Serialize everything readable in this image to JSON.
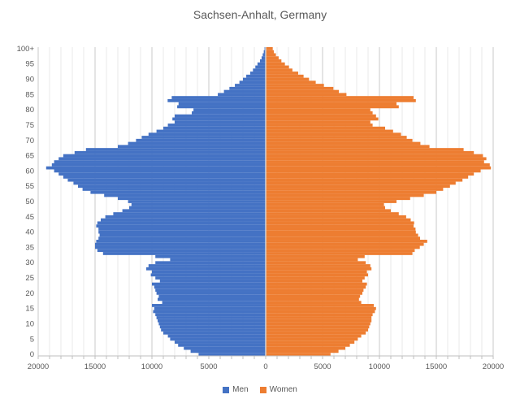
{
  "title": "Sachsen-Anhalt, Germany",
  "legend": {
    "men": "Men",
    "women": "Women"
  },
  "colors": {
    "men": "#4472C4",
    "women": "#ED7D31",
    "title_text": "#595959",
    "axis_text": "#595959",
    "grid_minor": "#E8E8E8",
    "grid_major": "#C9C9C9",
    "axis_line": "#BFBFBF",
    "center_divider": "#D9D9D9"
  },
  "chart_data": {
    "type": "bar",
    "subtype": "population-pyramid",
    "orientation": "horizontal-mirrored",
    "title": "Sachsen-Anhalt, Germany",
    "legend_position": "bottom",
    "grid": true,
    "x_axis": {
      "min": 0,
      "max": 20000,
      "major_tick_interval": 5000,
      "minor_gridline_interval": 1000,
      "tick_labels": [
        "20000",
        "15000",
        "10000",
        "5000",
        "0",
        "5000",
        "10000",
        "15000",
        "20000"
      ]
    },
    "y_axis": {
      "unit": "age (single years)",
      "label_interval": 5,
      "tick_labels": [
        "0",
        "5",
        "10",
        "15",
        "20",
        "25",
        "30",
        "35",
        "40",
        "45",
        "50",
        "55",
        "60",
        "65",
        "70",
        "75",
        "80",
        "85",
        "90",
        "95",
        "100+"
      ]
    },
    "ages": {
      "from": 0,
      "to": 100,
      "top_label": "100+"
    },
    "series": [
      {
        "name": "Men",
        "side": "left",
        "color": "#4472C4",
        "values": [
          5900,
          6600,
          7200,
          7700,
          8000,
          8400,
          8600,
          9000,
          9200,
          9300,
          9400,
          9500,
          9600,
          9700,
          9900,
          9800,
          10000,
          9100,
          9500,
          9400,
          9600,
          9700,
          9800,
          10000,
          9300,
          9700,
          10100,
          10000,
          10500,
          10300,
          9700,
          8400,
          9700,
          14300,
          14800,
          15000,
          15000,
          14900,
          14700,
          14600,
          14700,
          14700,
          14900,
          14800,
          14500,
          14100,
          13400,
          12600,
          12000,
          11800,
          12100,
          13000,
          14200,
          15400,
          16100,
          16500,
          16900,
          17400,
          17800,
          18200,
          18600,
          19300,
          18800,
          18600,
          18200,
          17800,
          16800,
          15800,
          13000,
          12100,
          11400,
          10900,
          10300,
          9600,
          9000,
          8600,
          8000,
          8200,
          8000,
          6500,
          6350,
          7780,
          7660,
          8620,
          8260,
          4210,
          3670,
          3190,
          2710,
          2310,
          2000,
          1710,
          1360,
          1120,
          910,
          720,
          500,
          360,
          260,
          170,
          100
        ]
      },
      {
        "name": "Women",
        "side": "right",
        "color": "#ED7D31",
        "values": [
          5700,
          6400,
          7000,
          7400,
          7800,
          8100,
          8400,
          8800,
          9000,
          9100,
          9200,
          9300,
          9300,
          9400,
          9600,
          9700,
          9500,
          8400,
          8200,
          8300,
          8500,
          8600,
          8800,
          8900,
          8500,
          8700,
          9000,
          8900,
          9300,
          9200,
          8800,
          8100,
          8700,
          12900,
          13100,
          13550,
          13900,
          14200,
          13570,
          13400,
          13200,
          13170,
          13000,
          13050,
          12750,
          12350,
          11700,
          11000,
          10500,
          10400,
          11500,
          12700,
          13900,
          15000,
          15600,
          16200,
          16700,
          17300,
          17800,
          18300,
          18900,
          19800,
          19700,
          19200,
          19400,
          19100,
          18300,
          17400,
          14400,
          13600,
          12900,
          12400,
          11900,
          11200,
          10500,
          9400,
          9200,
          9900,
          9700,
          9400,
          9200,
          11700,
          11500,
          13200,
          13000,
          7100,
          6430,
          5950,
          5120,
          4400,
          3810,
          3330,
          2860,
          2350,
          2050,
          1690,
          1380,
          1140,
          900,
          720,
          620
        ]
      }
    ]
  }
}
